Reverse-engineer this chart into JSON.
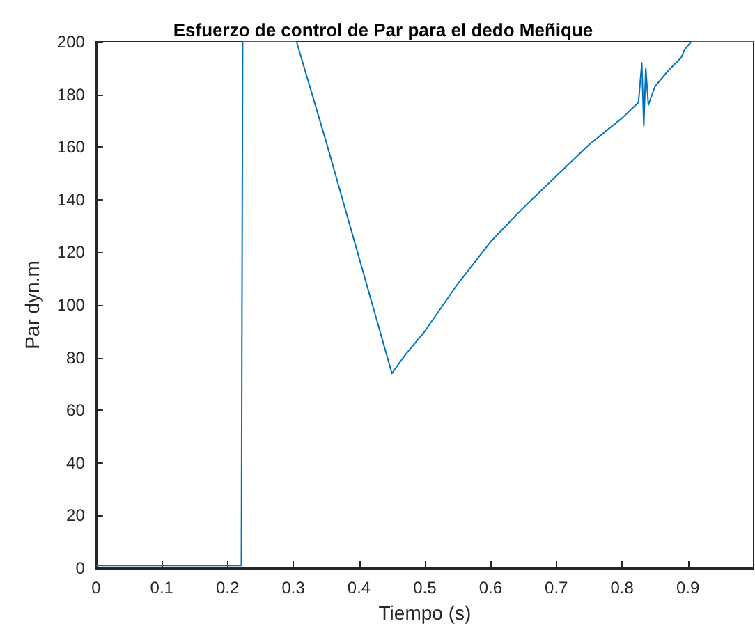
{
  "chart_data": {
    "type": "line",
    "title": "Esfuerzo de control de Par para el dedo Meñique",
    "xlabel": "Tiempo (s)",
    "ylabel": "Par dyn.m",
    "x": [
      0,
      0.1,
      0.221,
      0.223,
      0.305,
      0.35,
      0.4,
      0.45,
      0.47,
      0.5,
      0.55,
      0.6,
      0.65,
      0.7,
      0.75,
      0.8,
      0.825,
      0.83,
      0.833,
      0.836,
      0.84,
      0.85,
      0.87,
      0.89,
      0.895,
      0.905,
      1
    ],
    "series": [
      {
        "color": "#0072bd",
        "values": [
          1,
          1,
          1,
          200,
          200,
          162,
          118,
          74,
          81,
          90,
          108,
          124,
          137,
          149,
          161,
          171,
          177,
          192,
          168,
          190,
          176,
          183,
          189,
          194,
          197,
          200,
          200
        ]
      }
    ],
    "xlim": [
      0,
      1
    ],
    "ylim": [
      0,
      200
    ],
    "xticks": [
      0,
      0.1,
      0.2,
      0.3,
      0.4,
      0.5,
      0.6,
      0.7,
      0.8,
      0.9
    ],
    "yticks": [
      0,
      20,
      40,
      60,
      80,
      100,
      120,
      140,
      160,
      180,
      200
    ],
    "grid": false,
    "marker": "none",
    "line_style": "solid"
  }
}
